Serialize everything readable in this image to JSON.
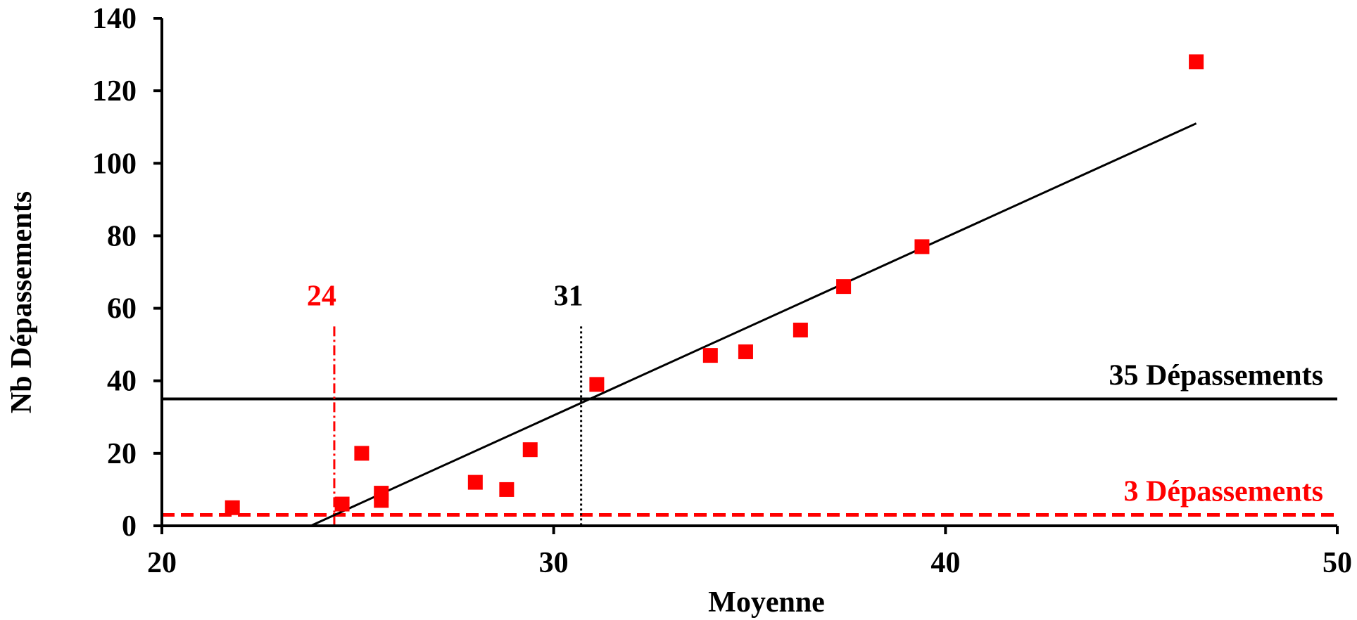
{
  "chart_data": {
    "type": "scatter",
    "title": "",
    "xlabel": "Moyenne",
    "ylabel": "Nb Dépassements",
    "xlim": [
      20,
      50
    ],
    "ylim": [
      0,
      140
    ],
    "xticks": [
      "20",
      "30",
      "40",
      "50"
    ],
    "yticks": [
      "0",
      "20",
      "40",
      "60",
      "80",
      "100",
      "120",
      "140"
    ],
    "grid": false,
    "legend": "none",
    "series": [
      {
        "color": "#ff0000",
        "marker": "square",
        "points": [
          {
            "x": 21.8,
            "y": 5
          },
          {
            "x": 24.6,
            "y": 6
          },
          {
            "x": 25.1,
            "y": 20
          },
          {
            "x": 25.6,
            "y": 7
          },
          {
            "x": 25.6,
            "y": 9
          },
          {
            "x": 28.0,
            "y": 12
          },
          {
            "x": 28.8,
            "y": 10
          },
          {
            "x": 29.4,
            "y": 21
          },
          {
            "x": 31.1,
            "y": 39
          },
          {
            "x": 34.0,
            "y": 47
          },
          {
            "x": 34.9,
            "y": 48
          },
          {
            "x": 36.3,
            "y": 54
          },
          {
            "x": 37.4,
            "y": 66
          },
          {
            "x": 39.4,
            "y": 77
          },
          {
            "x": 46.4,
            "y": 128
          }
        ]
      }
    ],
    "trendline": {
      "color": "#000000",
      "x": [
        23.8,
        46.4
      ],
      "y": [
        0,
        111
      ]
    },
    "reference_lines": [
      {
        "orientation": "horizontal",
        "value": 35,
        "style": "solid",
        "color": "#000000",
        "label": "35 Dépassements"
      },
      {
        "orientation": "horizontal",
        "value": 3,
        "style": "dashed",
        "color": "#ff0000",
        "label": "3 Dépassements"
      }
    ],
    "markers": [
      {
        "orientation": "vertical",
        "x": 24.4,
        "y_top": 55,
        "style": "dash-dot",
        "color": "#ff0000",
        "label": "24"
      },
      {
        "orientation": "vertical",
        "x": 30.7,
        "y_top": 55,
        "style": "dotted",
        "color": "#000000",
        "label": "31"
      }
    ]
  }
}
